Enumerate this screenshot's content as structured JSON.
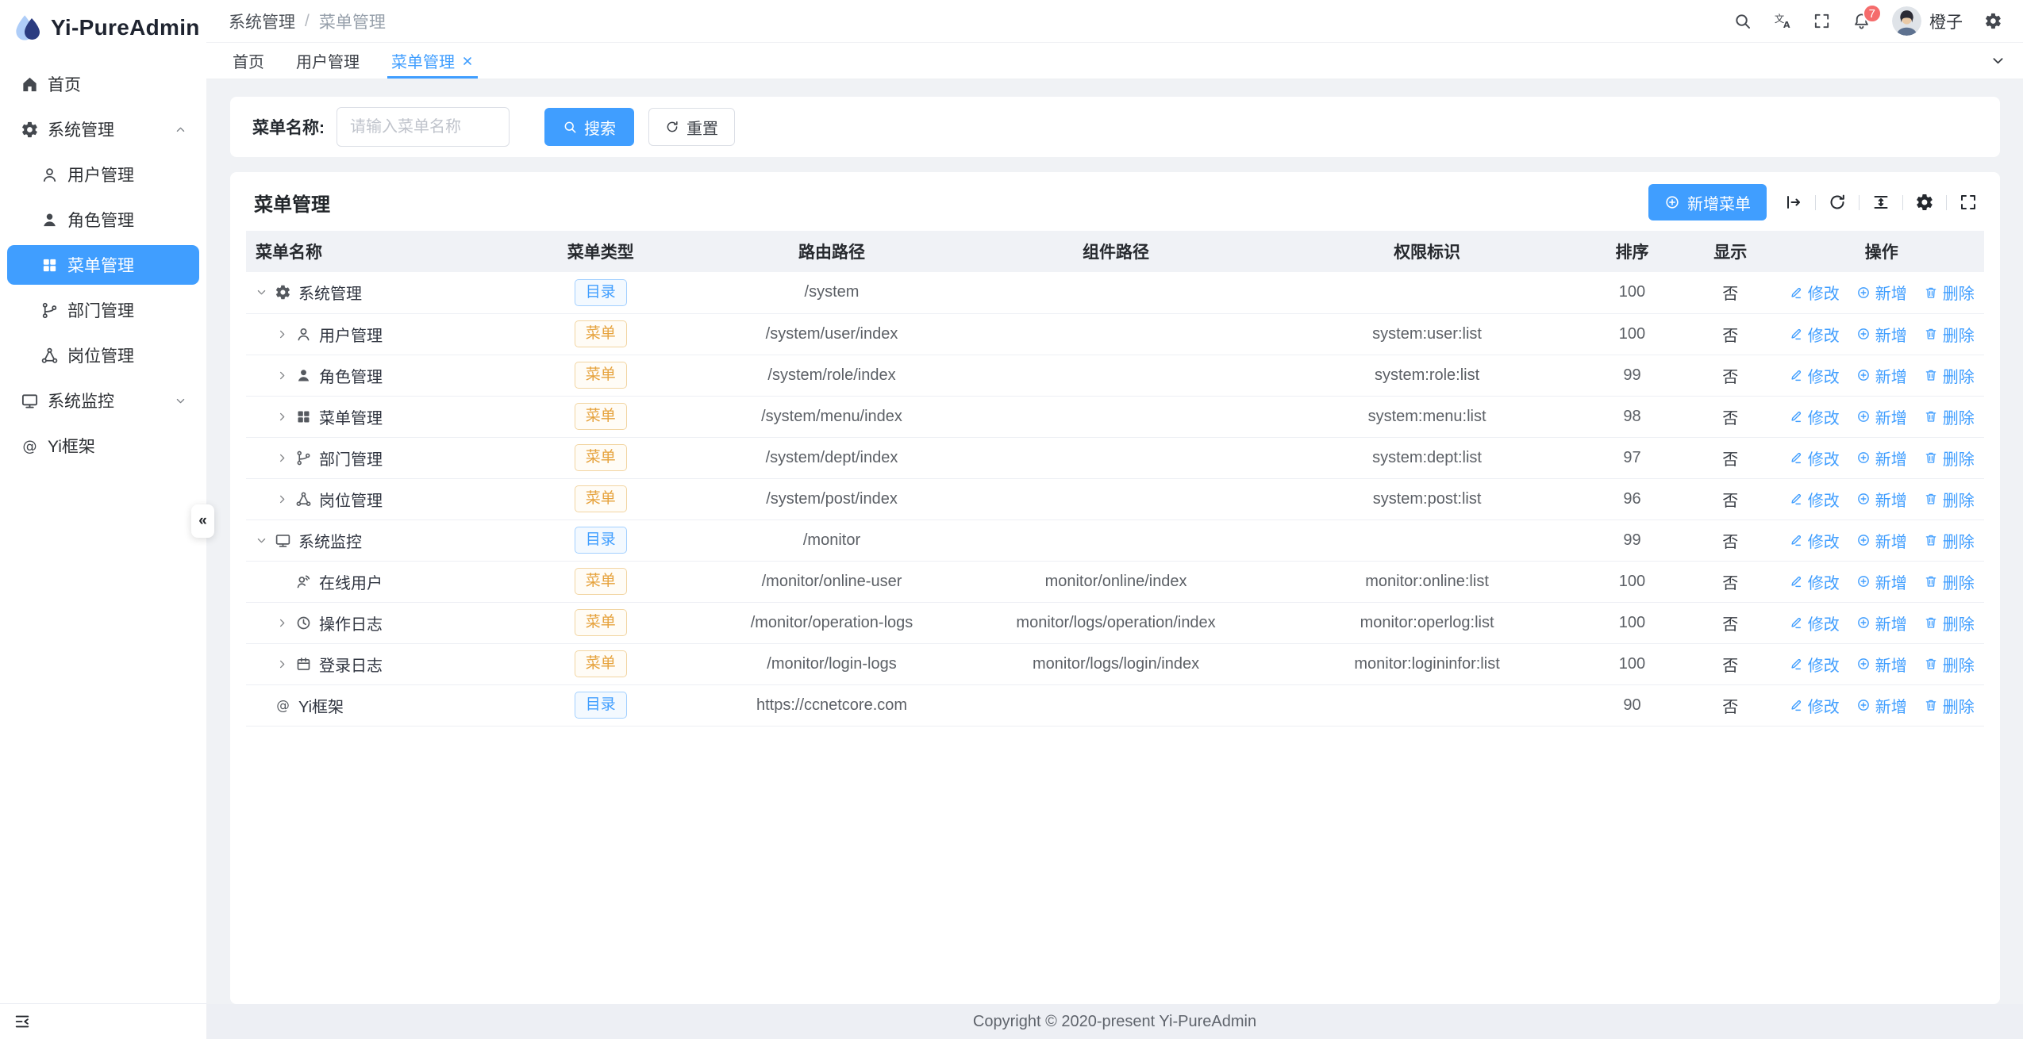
{
  "app": {
    "logo_title": "Yi-PureAdmin",
    "copyright": "Copyright © 2020-present Yi-PureAdmin"
  },
  "colors": {
    "primary": "#409eff",
    "warning": "#e6a23c",
    "badge": "#f56c6c",
    "sidebar_active_bg": "#409eff"
  },
  "sidebar": {
    "items": [
      {
        "label": "首页",
        "icon": "home-icon",
        "level": 0
      },
      {
        "label": "系统管理",
        "icon": "gear-icon",
        "level": 0,
        "chevron": "up"
      },
      {
        "label": "用户管理",
        "icon": "user-icon",
        "level": 1
      },
      {
        "label": "角色管理",
        "icon": "user-filled-icon",
        "level": 1
      },
      {
        "label": "菜单管理",
        "icon": "grid-icon",
        "level": 1,
        "active": true
      },
      {
        "label": "部门管理",
        "icon": "branch-icon",
        "level": 1
      },
      {
        "label": "岗位管理",
        "icon": "share-nodes-icon",
        "level": 1
      },
      {
        "label": "系统监控",
        "icon": "monitor-icon",
        "level": 0,
        "chevron": "down"
      },
      {
        "label": "Yi框架",
        "icon": "at-icon",
        "level": 0
      }
    ],
    "collapse_glyph": "«"
  },
  "header": {
    "breadcrumb": {
      "first": "系统管理",
      "separator": "/",
      "last": "菜单管理"
    },
    "badge_count": "7",
    "user_name": "橙子"
  },
  "tabs": [
    {
      "label": "首页",
      "active": false,
      "closable": false
    },
    {
      "label": "用户管理",
      "active": false,
      "closable": false
    },
    {
      "label": "菜单管理",
      "active": true,
      "closable": true
    }
  ],
  "search": {
    "label": "菜单名称:",
    "placeholder": "请输入菜单名称",
    "search_label": "搜索",
    "reset_label": "重置"
  },
  "card": {
    "title": "菜单管理",
    "add_button_label": "新增菜单"
  },
  "table": {
    "headers": [
      "菜单名称",
      "菜单类型",
      "路由路径",
      "组件路径",
      "权限标识",
      "排序",
      "显示",
      "操作"
    ],
    "action_labels": {
      "edit": "修改",
      "add": "新增",
      "delete": "删除"
    },
    "rows": [
      {
        "name": "系统管理",
        "icon": "gear-icon",
        "expand": "down",
        "level": 0,
        "type_label": "目录",
        "type_kind": "dir",
        "route": "/system",
        "component": "",
        "permission": "",
        "sort": "100",
        "visible": "否"
      },
      {
        "name": "用户管理",
        "icon": "user-icon",
        "expand": "right",
        "level": 1,
        "type_label": "菜单",
        "type_kind": "menu",
        "route": "/system/user/index",
        "component": "",
        "permission": "system:user:list",
        "sort": "100",
        "visible": "否"
      },
      {
        "name": "角色管理",
        "icon": "user-filled-icon",
        "expand": "right",
        "level": 1,
        "type_label": "菜单",
        "type_kind": "menu",
        "route": "/system/role/index",
        "component": "",
        "permission": "system:role:list",
        "sort": "99",
        "visible": "否"
      },
      {
        "name": "菜单管理",
        "icon": "grid-icon",
        "expand": "right",
        "level": 1,
        "type_label": "菜单",
        "type_kind": "menu",
        "route": "/system/menu/index",
        "component": "",
        "permission": "system:menu:list",
        "sort": "98",
        "visible": "否"
      },
      {
        "name": "部门管理",
        "icon": "branch-icon",
        "expand": "right",
        "level": 1,
        "type_label": "菜单",
        "type_kind": "menu",
        "route": "/system/dept/index",
        "component": "",
        "permission": "system:dept:list",
        "sort": "97",
        "visible": "否"
      },
      {
        "name": "岗位管理",
        "icon": "share-nodes-icon",
        "expand": "right",
        "level": 1,
        "type_label": "菜单",
        "type_kind": "menu",
        "route": "/system/post/index",
        "component": "",
        "permission": "system:post:list",
        "sort": "96",
        "visible": "否"
      },
      {
        "name": "系统监控",
        "icon": "monitor-icon",
        "expand": "down",
        "level": 0,
        "type_label": "目录",
        "type_kind": "dir",
        "route": "/monitor",
        "component": "",
        "permission": "",
        "sort": "99",
        "visible": "否"
      },
      {
        "name": "在线用户",
        "icon": "user-online-icon",
        "expand": "none",
        "level": 1,
        "type_label": "菜单",
        "type_kind": "menu",
        "route": "/monitor/online-user",
        "component": "monitor/online/index",
        "permission": "monitor:online:list",
        "sort": "100",
        "visible": "否"
      },
      {
        "name": "操作日志",
        "icon": "clock-icon",
        "expand": "right",
        "level": 1,
        "type_label": "菜单",
        "type_kind": "menu",
        "route": "/monitor/operation-logs",
        "component": "monitor/logs/operation/index",
        "permission": "monitor:operlog:list",
        "sort": "100",
        "visible": "否"
      },
      {
        "name": "登录日志",
        "icon": "calendar-icon",
        "expand": "right",
        "level": 1,
        "type_label": "菜单",
        "type_kind": "menu",
        "route": "/monitor/login-logs",
        "component": "monitor/logs/login/index",
        "permission": "monitor:logininfor:list",
        "sort": "100",
        "visible": "否"
      },
      {
        "name": "Yi框架",
        "icon": "at-icon",
        "expand": "none",
        "level": 0,
        "type_label": "目录",
        "type_kind": "dir",
        "route": "https://ccnetcore.com",
        "component": "",
        "permission": "",
        "sort": "90",
        "visible": "否"
      }
    ]
  }
}
